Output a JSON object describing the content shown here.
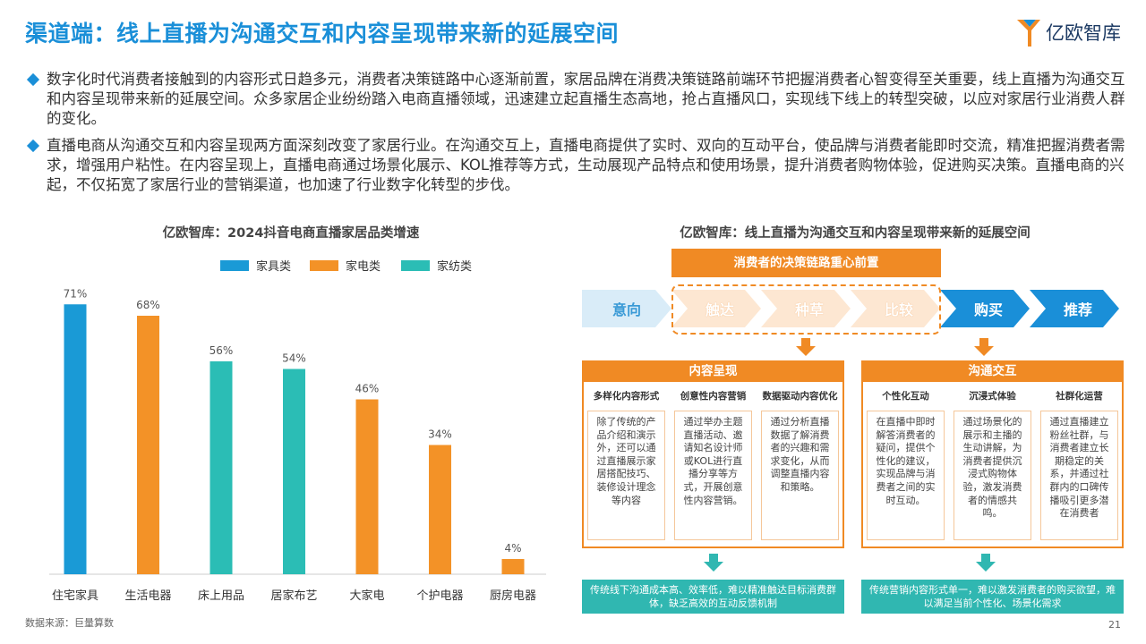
{
  "header": {
    "title": "渠道端：线上直播为沟通交互和内容呈现带来新的延展空间",
    "logo_text": "亿欧智库"
  },
  "bullets": [
    "数字化时代消费者接触到的内容形式日趋多元，消费者决策链路中心逐渐前置，家居品牌在消费决策链路前端环节把握消费者心智变得至关重要，线上直播为沟通交互和内容呈现带来新的延展空间。众多家居企业纷纷踏入电商直播领域，迅速建立起直播生态高地，抢占直播风口，实现线下线上的转型突破，以应对家居行业消费人群的变化。",
    "直播电商从沟通交互和内容呈现两方面深刻改变了家居行业。在沟通交互上，直播电商提供了实时、双向的互动平台，使品牌与消费者能即时交流，精准把握消费者需求，增强用户粘性。在内容呈现上，直播电商通过场景化展示、KOL推荐等方式，生动展现产品特点和使用场景，提升消费者购物体验，促进购买决策。直播电商的兴起，不仅拓宽了家居行业的营销渠道，也加速了行业数字化转型的步伐。"
  ],
  "chart_data": {
    "type": "bar",
    "title": "亿欧智库：2024抖音电商直播家居品类增速",
    "categories": [
      "住宅家具",
      "生活电器",
      "床上用品",
      "居家布艺",
      "大家电",
      "个护电器",
      "厨房电器"
    ],
    "values": [
      71,
      68,
      56,
      54,
      46,
      34,
      4
    ],
    "value_labels": [
      "71%",
      "68%",
      "56%",
      "54%",
      "46%",
      "34%",
      "4%"
    ],
    "series_of_category": [
      0,
      1,
      2,
      2,
      1,
      1,
      1
    ],
    "series": [
      {
        "name": "家具类",
        "color": "#1a9ad6"
      },
      {
        "name": "家电类",
        "color": "#f39227"
      },
      {
        "name": "家纺类",
        "color": "#2bbdb5"
      }
    ],
    "ylim": [
      0,
      80
    ],
    "legend_position": "top-center",
    "grid": false
  },
  "flow": {
    "title": "亿欧智库：线上直播为沟通交互和内容呈现带来新的延展空间",
    "top_label": "消费者的决策链路重心前置",
    "steps": [
      "意向",
      "触达",
      "种草",
      "比较",
      "购买",
      "推荐"
    ],
    "panels": [
      {
        "title": "内容呈现",
        "columns": [
          {
            "head": "多样化内容形式",
            "body": "除了传统的产品介绍和演示外，还可以通过直播展示家居搭配技巧、装修设计理念等内容"
          },
          {
            "head": "创意性内容营销",
            "body": "通过举办主题直播活动、邀请知名设计师或KOL进行直播分享等方式，开展创意性内容营销。"
          },
          {
            "head": "数据驱动内容优化",
            "body": "通过分析直播数据了解消费者的兴趣和需求变化，从而调整直播内容和策略。"
          }
        ],
        "note": "传统线下沟通成本高、效率低，难以精准触达目标消费群体，缺乏高效的互动反馈机制"
      },
      {
        "title": "沟通交互",
        "columns": [
          {
            "head": "个性化互动",
            "body": "在直播中即时解答消费者的疑问，提供个性化的建议，实现品牌与消费者之间的实时互动。"
          },
          {
            "head": "沉浸式体验",
            "body": "通过场景化的展示和主播的生动讲解，为消费者提供沉浸式购物体验，激发消费者的情感共鸣。"
          },
          {
            "head": "社群化运营",
            "body": "通过直播建立粉丝社群，与消费者建立长期稳定的关系，并通过社群内的口碑传播吸引更多潜在消费者"
          }
        ],
        "note": "传统营销内容形式单一，难以激发消费者的购买欲望，难以满足当前个性化、场景化需求"
      }
    ]
  },
  "footer": {
    "source": "数据来源：巨量算数",
    "page": "21"
  }
}
